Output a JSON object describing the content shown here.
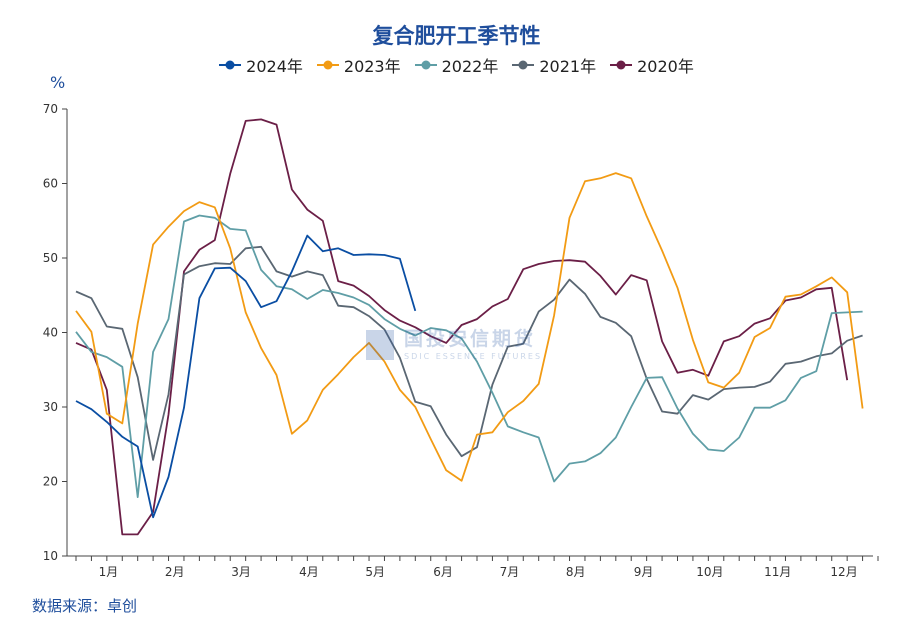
{
  "chart_data": {
    "type": "line",
    "title": "复合肥开工季节性",
    "ylabel": "%",
    "ylim": [
      10,
      70
    ],
    "yticks": [
      10,
      20,
      30,
      40,
      50,
      60,
      70
    ],
    "xlim": [
      1,
      53
    ],
    "categories": [
      "1月",
      "2月",
      "3月",
      "4月",
      "5月",
      "6月",
      "7月",
      "8月",
      "9月",
      "10月",
      "11月",
      "12月"
    ],
    "category_weeks": [
      3.1,
      7.4,
      11.7,
      16.1,
      20.4,
      24.8,
      29.1,
      33.4,
      37.8,
      42.1,
      46.5,
      50.8
    ],
    "legend_position": "top",
    "grid": false,
    "series": [
      {
        "name": "2024年",
        "color": "#0a4ea3",
        "x": [
          1,
          2,
          3,
          4,
          5,
          6,
          7,
          8,
          9,
          10,
          11,
          12,
          13,
          14,
          15,
          16,
          17,
          18,
          19,
          20,
          21,
          22,
          23,
          24
        ],
        "y": [
          30.8,
          29.7,
          28.0,
          26.0,
          24.7,
          15.2,
          20.6,
          29.9,
          44.6,
          48.6,
          48.7,
          46.9,
          43.4,
          44.2,
          48.2,
          53.0,
          50.9,
          51.3,
          50.4,
          50.5,
          50.4,
          49.9,
          42.9,
          null
        ]
      },
      {
        "name": "2023年",
        "color": "#f29b14",
        "x": [
          1,
          2,
          3,
          4,
          5,
          6,
          7,
          8,
          9,
          10,
          11,
          12,
          13,
          14,
          15,
          16,
          17,
          18,
          19,
          20,
          21,
          22,
          23,
          24,
          25,
          26,
          27,
          28,
          29,
          30,
          31,
          32,
          33,
          34,
          35,
          36,
          37,
          38,
          39,
          40,
          41,
          42,
          43,
          44,
          45,
          46,
          47,
          48,
          49,
          50,
          51,
          52,
          53
        ],
        "y": [
          42.9,
          40.1,
          29.1,
          27.8,
          41.2,
          51.8,
          54.2,
          56.3,
          57.5,
          56.8,
          51.3,
          42.7,
          37.9,
          34.3,
          26.4,
          28.2,
          32.3,
          34.4,
          36.7,
          38.6,
          36.1,
          32.3,
          30.0,
          25.7,
          21.5,
          20.1,
          26.3,
          26.6,
          29.3,
          30.8,
          33.1,
          42.3,
          55.4,
          60.3,
          60.7,
          61.4,
          60.7,
          55.6,
          51.0,
          46.0,
          39.0,
          33.3,
          32.6,
          34.6,
          39.4,
          40.6,
          44.8,
          45.1,
          46.2,
          47.4,
          45.4,
          29.8,
          null
        ]
      },
      {
        "name": "2022年",
        "color": "#5f9ea6",
        "x": [
          1,
          2,
          3,
          4,
          5,
          6,
          7,
          8,
          9,
          10,
          11,
          12,
          13,
          14,
          15,
          16,
          17,
          18,
          19,
          20,
          21,
          22,
          23,
          24,
          25,
          26,
          27,
          28,
          29,
          30,
          31,
          32,
          33,
          34,
          35,
          36,
          37,
          38,
          39,
          40,
          41,
          42,
          43,
          44,
          45,
          46,
          47,
          48,
          49,
          50,
          51,
          52
        ],
        "y": [
          40.1,
          37.4,
          36.7,
          35.4,
          17.9,
          37.4,
          41.8,
          54.9,
          55.7,
          55.4,
          53.9,
          53.7,
          48.4,
          46.2,
          45.8,
          44.5,
          45.7,
          45.3,
          44.7,
          43.7,
          41.8,
          40.5,
          39.6,
          40.6,
          40.3,
          39.2,
          36.1,
          31.9,
          27.4,
          26.6,
          25.9,
          20.0,
          22.4,
          22.7,
          23.8,
          25.9,
          30.0,
          33.9,
          34.0,
          29.8,
          26.4,
          24.3,
          24.1,
          25.9,
          29.9,
          29.9,
          30.9,
          33.9,
          34.8,
          42.6,
          42.7,
          42.8
        ]
      },
      {
        "name": "2021年",
        "color": "#5a6773",
        "x": [
          1,
          2,
          3,
          4,
          5,
          6,
          7,
          8,
          9,
          10,
          11,
          12,
          13,
          14,
          15,
          16,
          17,
          18,
          19,
          20,
          21,
          22,
          23,
          24,
          25,
          26,
          27,
          28,
          29,
          30,
          31,
          32,
          33,
          34,
          35,
          36,
          37,
          38,
          39,
          40,
          41,
          42,
          43,
          44,
          45,
          46,
          47,
          48,
          49,
          50,
          51,
          52,
          53
        ],
        "y": [
          45.5,
          44.6,
          40.8,
          40.5,
          34.0,
          22.9,
          31.7,
          47.8,
          48.9,
          49.3,
          49.2,
          51.3,
          51.5,
          48.2,
          47.5,
          48.2,
          47.7,
          43.6,
          43.4,
          42.2,
          40.4,
          36.6,
          30.7,
          30.1,
          26.3,
          23.4,
          24.6,
          33.0,
          38.1,
          38.5,
          42.8,
          44.4,
          47.1,
          45.2,
          42.1,
          41.3,
          39.5,
          33.8,
          29.4,
          29.1,
          31.6,
          31.0,
          32.4,
          32.6,
          32.7,
          33.4,
          35.8,
          36.1,
          36.8,
          37.2,
          38.9,
          39.6,
          null
        ]
      },
      {
        "name": "2020年",
        "color": "#6b1f47",
        "x": [
          1,
          2,
          3,
          4,
          5,
          6,
          7,
          8,
          9,
          10,
          11,
          12,
          13,
          14,
          15,
          16,
          17,
          18,
          19,
          20,
          21,
          22,
          23,
          24,
          25,
          26,
          27,
          28,
          29,
          30,
          31,
          32,
          33,
          34,
          35,
          36,
          37,
          38,
          39,
          40,
          41,
          42,
          43,
          44,
          45,
          46,
          47,
          48,
          49,
          50,
          51,
          52
        ],
        "y": [
          38.6,
          37.7,
          32.3,
          12.9,
          12.9,
          15.9,
          29.0,
          48.2,
          51.1,
          52.4,
          61.3,
          68.4,
          68.6,
          67.9,
          59.2,
          56.5,
          55.0,
          46.9,
          46.3,
          44.9,
          43.0,
          41.6,
          40.7,
          39.5,
          38.6,
          41.0,
          41.8,
          43.5,
          44.5,
          48.5,
          49.2,
          49.6,
          49.7,
          49.5,
          47.6,
          45.1,
          47.7,
          47.0,
          38.8,
          34.6,
          35.0,
          34.2,
          38.8,
          39.5,
          41.2,
          41.9,
          44.3,
          44.7,
          45.8,
          46.0,
          33.6,
          null
        ]
      }
    ]
  },
  "legend_marker": "line-with-circle-icon",
  "source_text": "数据来源：卓创",
  "watermark": {
    "text": "国投安信期货",
    "sub": "SDIC ESSENCE FUTURES"
  }
}
